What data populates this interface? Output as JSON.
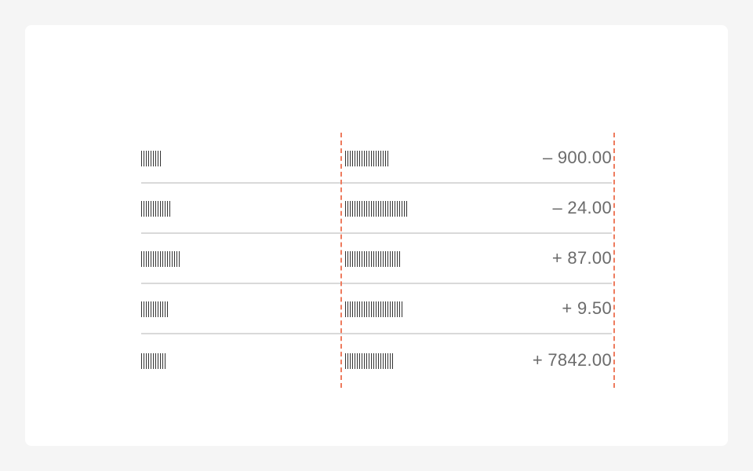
{
  "rows": [
    {
      "col_a_bars": 9,
      "col_b_bars": 19,
      "amount": "– 900.00"
    },
    {
      "col_a_bars": 13,
      "col_b_bars": 27,
      "amount": "– 24.00"
    },
    {
      "col_a_bars": 17,
      "col_b_bars": 24,
      "amount": "+ 87.00"
    },
    {
      "col_a_bars": 12,
      "col_b_bars": 25,
      "amount": "+ 9.50"
    },
    {
      "col_a_bars": 11,
      "col_b_bars": 21,
      "amount": "+ 7842.00"
    }
  ],
  "colors": {
    "background": "#f5f5f5",
    "card": "#ffffff",
    "divider": "#d9d9d9",
    "guide": "#ee7b5e",
    "amount_text": "#6b6b6b",
    "placeholder_bar": "#333333"
  }
}
